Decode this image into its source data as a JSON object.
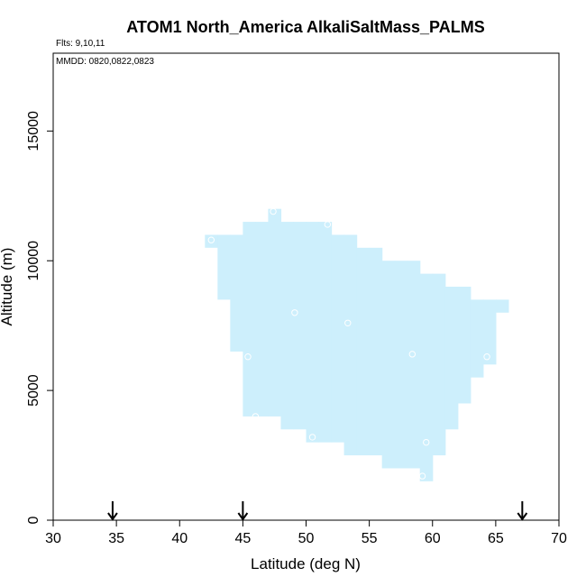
{
  "chart_data": {
    "type": "heatmap",
    "title": "ATOM1 North_America AlkaliSaltMass_PALMS",
    "flights_label": "Flts: 9,10,11",
    "dates_label": "MMDD: 0820,0822,0823",
    "xlabel": "Latitude (deg N)",
    "ylabel": "Altitude (m)",
    "xlim": [
      30,
      70
    ],
    "ylim": [
      0,
      18000
    ],
    "xticks": [
      30,
      35,
      40,
      45,
      50,
      55,
      60,
      65,
      70
    ],
    "yticks": [
      0,
      5000,
      10000,
      15000
    ],
    "fill_color": "#cdeffc",
    "marker_color": "#ffffff",
    "cell_width_deg": 1,
    "cell_height_m": 500,
    "column_ranges": [
      {
        "lat": 42,
        "alt_min": 10500,
        "alt_max": 11000
      },
      {
        "lat": 43,
        "alt_min": 8500,
        "alt_max": 11000
      },
      {
        "lat": 44,
        "alt_min": 6500,
        "alt_max": 11000
      },
      {
        "lat": 45,
        "alt_min": 4000,
        "alt_max": 11500
      },
      {
        "lat": 46,
        "alt_min": 4000,
        "alt_max": 11500
      },
      {
        "lat": 47,
        "alt_min": 4000,
        "alt_max": 12000
      },
      {
        "lat": 48,
        "alt_min": 3500,
        "alt_max": 11500
      },
      {
        "lat": 49,
        "alt_min": 3500,
        "alt_max": 11500
      },
      {
        "lat": 50,
        "alt_min": 3000,
        "alt_max": 11500
      },
      {
        "lat": 51,
        "alt_min": 3000,
        "alt_max": 11500
      },
      {
        "lat": 52,
        "alt_min": 3000,
        "alt_max": 11000
      },
      {
        "lat": 53,
        "alt_min": 2500,
        "alt_max": 11000
      },
      {
        "lat": 54,
        "alt_min": 2500,
        "alt_max": 10500
      },
      {
        "lat": 55,
        "alt_min": 2500,
        "alt_max": 10500
      },
      {
        "lat": 56,
        "alt_min": 2000,
        "alt_max": 10000
      },
      {
        "lat": 57,
        "alt_min": 2000,
        "alt_max": 10000
      },
      {
        "lat": 58,
        "alt_min": 2000,
        "alt_max": 10000
      },
      {
        "lat": 59,
        "alt_min": 1500,
        "alt_max": 9500
      },
      {
        "lat": 60,
        "alt_min": 2500,
        "alt_max": 9500
      },
      {
        "lat": 61,
        "alt_min": 3500,
        "alt_max": 9000
      },
      {
        "lat": 62,
        "alt_min": 4500,
        "alt_max": 9000
      },
      {
        "lat": 63,
        "alt_min": 5500,
        "alt_max": 8500
      },
      {
        "lat": 64,
        "alt_min": 6000,
        "alt_max": 8500
      },
      {
        "lat": 65,
        "alt_min": 8000,
        "alt_max": 8500
      }
    ],
    "sample_points": [
      {
        "lat": 42.5,
        "alt": 10800
      },
      {
        "lat": 47.4,
        "alt": 11900
      },
      {
        "lat": 51.7,
        "alt": 11400
      },
      {
        "lat": 49.1,
        "alt": 8000
      },
      {
        "lat": 53.3,
        "alt": 7600
      },
      {
        "lat": 45.4,
        "alt": 6300
      },
      {
        "lat": 58.4,
        "alt": 6400
      },
      {
        "lat": 64.3,
        "alt": 6300
      },
      {
        "lat": 46.0,
        "alt": 4000
      },
      {
        "lat": 50.5,
        "alt": 3200
      },
      {
        "lat": 59.5,
        "alt": 3000
      },
      {
        "lat": 59.2,
        "alt": 1700
      }
    ],
    "arrows_lat": [
      34.7,
      45.0,
      67.1
    ]
  }
}
